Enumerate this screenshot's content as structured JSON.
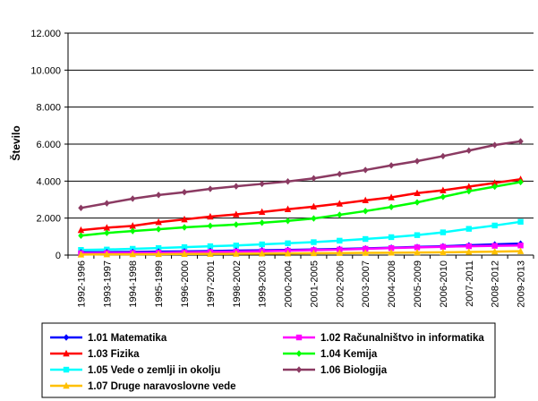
{
  "chart_data": {
    "type": "line",
    "ylabel": "Število",
    "ylim": [
      0,
      12000
    ],
    "y_ticks": [
      "0",
      "2.000",
      "4.000",
      "6.000",
      "8.000",
      "10.000",
      "12.000"
    ],
    "y_tick_values": [
      0,
      2000,
      4000,
      6000,
      8000,
      10000,
      12000
    ],
    "categories": [
      "1992-1996",
      "1993-1997",
      "1994-1998",
      "1995-1999",
      "1996-2000",
      "1997-2001",
      "1998-2002",
      "1999-2003",
      "2000-2004",
      "2001-2005",
      "2002-2006",
      "2003-2007",
      "2004-2008",
      "2005-2009",
      "2006-2010",
      "2007-2011",
      "2008-2012",
      "2009-2013"
    ],
    "grid": true,
    "legend_position": "bottom",
    "series": [
      {
        "name": "1.01 Matematika",
        "color": "#0000FF",
        "marker": "diamond",
        "values": [
          150,
          160,
          170,
          190,
          200,
          220,
          240,
          260,
          280,
          300,
          330,
          360,
          400,
          440,
          480,
          530,
          580,
          620
        ]
      },
      {
        "name": "1.02 Računalništvo in informatika",
        "color": "#FF00FF",
        "marker": "square",
        "values": [
          100,
          110,
          120,
          130,
          150,
          170,
          190,
          210,
          240,
          270,
          300,
          340,
          380,
          420,
          450,
          480,
          500,
          520
        ]
      },
      {
        "name": "1.03 Fizika",
        "color": "#FF0000",
        "marker": "triangle",
        "values": [
          1350,
          1480,
          1580,
          1780,
          1930,
          2080,
          2200,
          2330,
          2480,
          2620,
          2780,
          2960,
          3120,
          3350,
          3500,
          3700,
          3900,
          4100
        ]
      },
      {
        "name": "1.04 Kemija",
        "color": "#00FF00",
        "marker": "diamond",
        "values": [
          1050,
          1200,
          1300,
          1400,
          1500,
          1580,
          1650,
          1750,
          1850,
          1980,
          2180,
          2380,
          2600,
          2850,
          3150,
          3450,
          3700,
          3950
        ]
      },
      {
        "name": "1.05 Vede o zemlji in okolju",
        "color": "#00FFFF",
        "marker": "square",
        "values": [
          280,
          300,
          340,
          380,
          430,
          480,
          520,
          580,
          640,
          700,
          780,
          870,
          970,
          1080,
          1230,
          1420,
          1600,
          1800
        ]
      },
      {
        "name": "1.06 Biologija",
        "color": "#8B3A62",
        "marker": "diamond",
        "values": [
          2550,
          2800,
          3050,
          3250,
          3400,
          3580,
          3720,
          3850,
          3980,
          4150,
          4380,
          4600,
          4850,
          5080,
          5350,
          5650,
          5950,
          6150
        ]
      },
      {
        "name": "1.07 Druge naravoslovne vede",
        "color": "#FFC000",
        "marker": "triangle",
        "values": [
          30,
          40,
          45,
          50,
          60,
          65,
          70,
          80,
          90,
          100,
          110,
          120,
          130,
          140,
          150,
          170,
          190,
          210
        ]
      }
    ]
  }
}
